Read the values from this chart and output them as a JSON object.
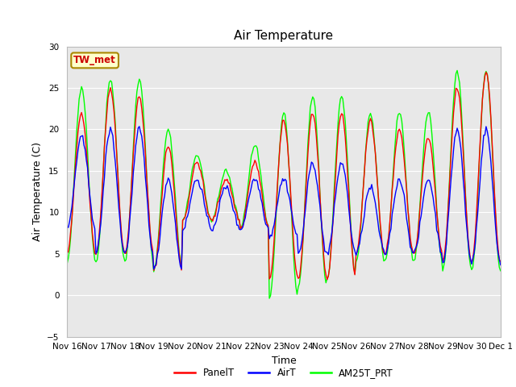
{
  "title": "Air Temperature",
  "ylabel": "Air Temperature (C)",
  "xlabel": "Time",
  "ylim": [
    -5,
    30
  ],
  "yticks": [
    -5,
    0,
    5,
    10,
    15,
    20,
    25,
    30
  ],
  "station_label": "TW_met",
  "legend": [
    "PanelT",
    "AirT",
    "AM25T_PRT"
  ],
  "line_colors": [
    "red",
    "blue",
    "lime"
  ],
  "background_color": "#e8e8e8",
  "figure_bg": "#ffffff",
  "title_fontsize": 11,
  "axis_label_fontsize": 9,
  "tick_fontsize": 7.5,
  "tick_labels": [
    "Nov 16",
    "Nov 17",
    "Nov 18",
    "Nov 19",
    "Nov 20",
    "Nov 21",
    "Nov 22",
    "Nov 23",
    "Nov 24",
    "Nov 25",
    "Nov 26",
    "Nov 27",
    "Nov 28",
    "Nov 29",
    "Nov 30",
    "Dec 1"
  ],
  "peaks_panel": [
    22,
    25,
    24,
    18,
    16,
    14,
    16,
    21,
    22,
    22,
    21,
    20,
    19,
    25,
    27
  ],
  "troughs_panel": [
    5,
    5,
    5,
    3,
    9,
    9,
    8,
    2,
    2,
    2,
    5,
    5,
    5,
    4,
    4
  ],
  "peaks_air": [
    19,
    20,
    20,
    14,
    14,
    13,
    14,
    14,
    16,
    16,
    13,
    14,
    14,
    20,
    20
  ],
  "troughs_air": [
    8,
    5,
    5,
    3,
    8,
    8,
    8,
    7,
    5,
    5,
    5,
    5,
    5,
    4,
    4
  ],
  "peaks_am25": [
    25,
    26,
    26,
    20,
    17,
    15,
    18,
    22,
    24,
    24,
    22,
    22,
    22,
    27,
    27
  ],
  "troughs_am25": [
    4,
    4,
    4,
    3,
    9,
    9,
    8,
    -0.5,
    1,
    2,
    4,
    4,
    4,
    3,
    3
  ]
}
